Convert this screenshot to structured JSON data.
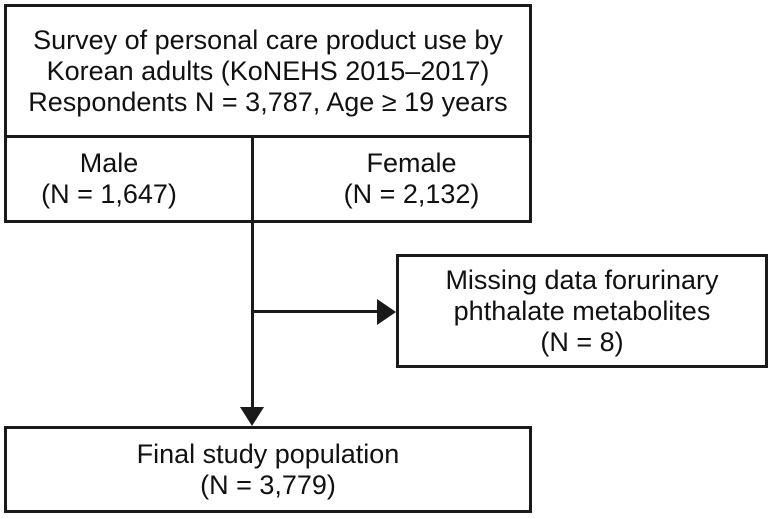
{
  "flowchart": {
    "survey_box": {
      "lines": [
        "Survey of personal care product use by",
        "Korean adults (KoNEHS 2015–2017)",
        "Respondents N = 3,787, Age ≥ 19 years"
      ]
    },
    "male_cell": {
      "label": "Male",
      "count": "(N = 1,647)"
    },
    "female_cell": {
      "label": "Female",
      "count": "(N = 2,132)"
    },
    "exclusion_box": {
      "lines": [
        "Missing data forurinary",
        "phthalate metabolites",
        "(N = 8)"
      ]
    },
    "final_box": {
      "lines": [
        "Final study population",
        "(N = 3,779)"
      ]
    },
    "colors": {
      "line": "#1a1a1a",
      "text": "#111111",
      "background": "#ffffff"
    }
  }
}
